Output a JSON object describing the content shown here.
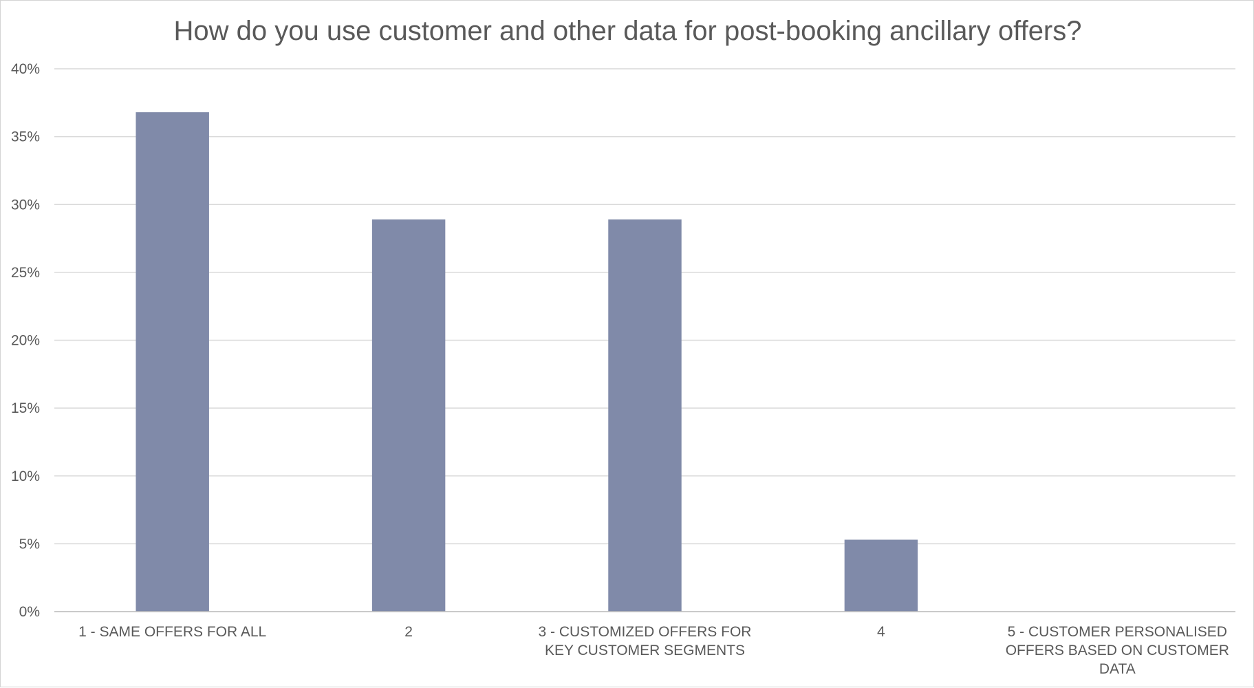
{
  "chart_data": {
    "type": "bar",
    "title": "How do you use customer and other data for post-booking ancillary offers?",
    "categories": [
      "1 - SAME OFFERS FOR ALL",
      "2",
      "3 - CUSTOMIZED OFFERS FOR KEY CUSTOMER SEGMENTS",
      "4",
      "5 - CUSTOMER PERSONALISED OFFERS BASED ON CUSTOMER DATA"
    ],
    "category_lines": [
      [
        "1 - SAME OFFERS FOR ALL"
      ],
      [
        "2"
      ],
      [
        "3 - CUSTOMIZED OFFERS FOR",
        "KEY CUSTOMER SEGMENTS"
      ],
      [
        "4"
      ],
      [
        "5 - CUSTOMER PERSONALISED",
        "OFFERS BASED ON CUSTOMER",
        "DATA"
      ]
    ],
    "values": [
      36.8,
      28.9,
      28.9,
      5.3,
      0
    ],
    "ylim": [
      0,
      40
    ],
    "yticks": [
      0,
      5,
      10,
      15,
      20,
      25,
      30,
      35,
      40
    ],
    "ytick_labels": [
      "0%",
      "5%",
      "10%",
      "15%",
      "20%",
      "25%",
      "30%",
      "35%",
      "40%"
    ],
    "xlabel": "",
    "ylabel": "",
    "grid": true,
    "legend": "none",
    "bar_color": "#808aa9",
    "grid_color": "#d9d9d9",
    "text_color": "#595959"
  }
}
